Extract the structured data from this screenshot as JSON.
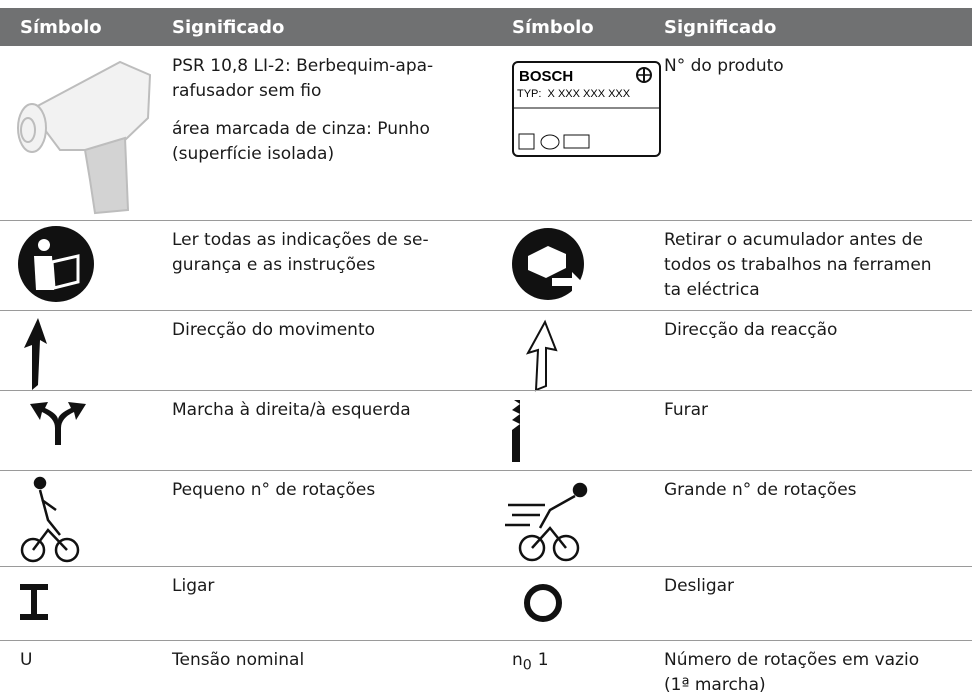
{
  "header": {
    "columns": [
      "Símbolo",
      "Significado",
      "Símbolo",
      "Significado"
    ]
  },
  "rows": [
    {
      "left": {
        "meaning": [
          [
            "PSR 10,8 LI-2: Berbequim-apa-",
            "rafusador sem fio"
          ],
          [
            "área marcada de cinza: Punho",
            "(superfície isolada)"
          ]
        ]
      },
      "right": {
        "label": {
          "brand": "BOSCH",
          "type": "TYP:  X XXX XXX XXX"
        },
        "meaning": [
          [
            "N° do produto"
          ]
        ]
      }
    },
    {
      "left": {
        "meaning": [
          [
            "Ler todas as indicações de se-",
            "gurança e as instruções"
          ]
        ]
      },
      "right": {
        "meaning": [
          [
            "Retirar o acumulador antes de",
            "todos os trabalhos na ferramen",
            "ta eléctrica"
          ]
        ]
      }
    },
    {
      "left": {
        "meaning": [
          [
            "Direcção do movimento"
          ]
        ]
      },
      "right": {
        "meaning": [
          [
            "Direcção da reacção"
          ]
        ]
      }
    },
    {
      "left": {
        "meaning": [
          [
            "Marcha à direita/à esquerda"
          ]
        ]
      },
      "right": {
        "meaning": [
          [
            "Furar"
          ]
        ]
      }
    },
    {
      "left": {
        "meaning": [
          [
            "Pequeno n° de rotações"
          ]
        ]
      },
      "right": {
        "meaning": [
          [
            "Grande n° de rotações"
          ]
        ]
      }
    },
    {
      "left": {
        "meaning": [
          [
            "Ligar"
          ]
        ]
      },
      "right": {
        "meaning": [
          [
            "Desligar"
          ]
        ]
      }
    },
    {
      "left": {
        "symbol": "U",
        "meaning": [
          [
            "Tensão nominal"
          ]
        ]
      },
      "right": {
        "symbol": {
          "main": "n",
          "sub": "0",
          "suffix": "1"
        },
        "meaning": [
          [
            "Número de rotações em vazio",
            "(1ª marcha)"
          ]
        ]
      }
    }
  ]
}
